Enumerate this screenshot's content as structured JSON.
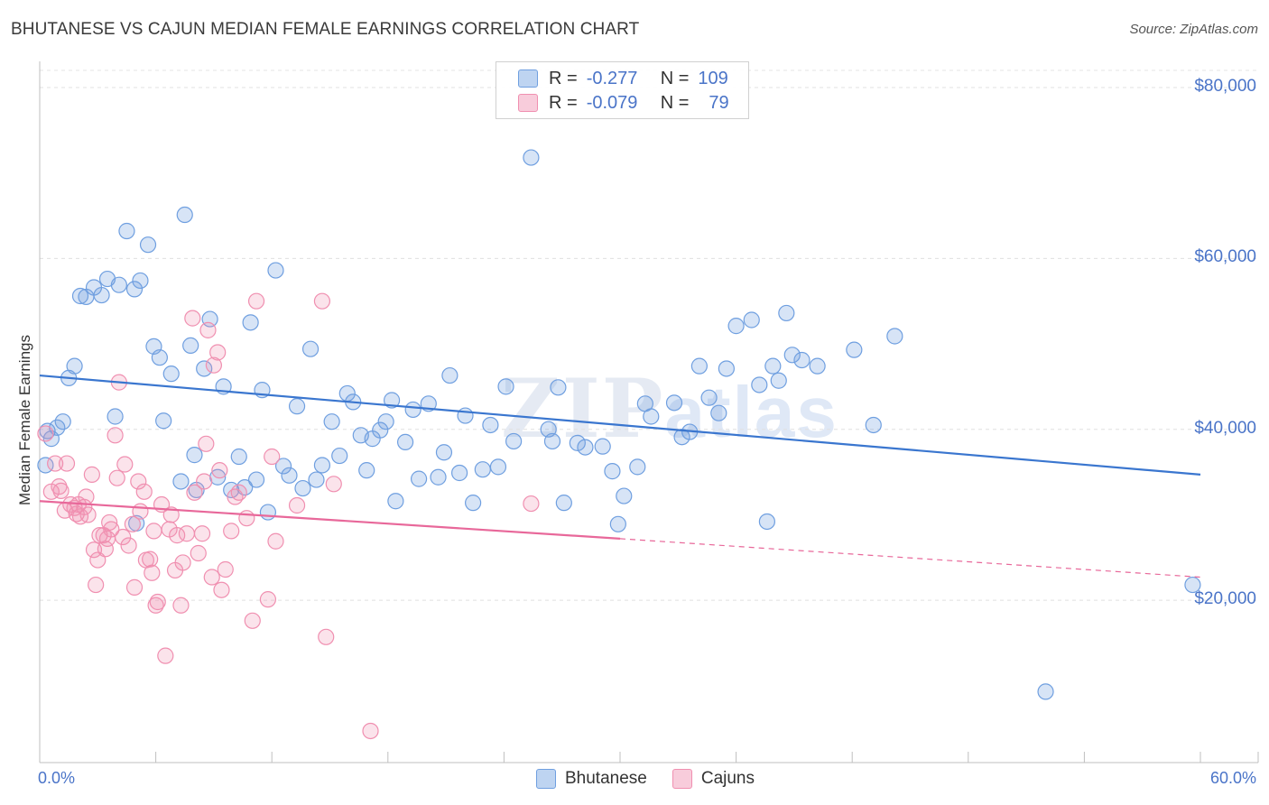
{
  "title": "BHUTANESE VS CAJUN MEDIAN FEMALE EARNINGS CORRELATION CHART",
  "source": "Source: ZipAtlas.com",
  "watermark": {
    "zip": "ZIP",
    "atlas": "atlas"
  },
  "colors": {
    "blue": "#6f9fe0",
    "blue_line": "#3a76cf",
    "pink": "#f08fb0",
    "pink_line": "#e8689a",
    "axis_text": "#4a74c8"
  },
  "legend": {
    "rows": [
      {
        "r_label": "R =",
        "r_value": "-0.277",
        "n_label": "N =",
        "n_value": "109",
        "color": "#6f9fe0"
      },
      {
        "r_label": "R =",
        "r_value": "-0.079",
        "n_label": "N =",
        "n_value": "79",
        "color": "#f08fb0"
      }
    ]
  },
  "bottom_legend": [
    {
      "label": "Bhutanese",
      "color": "#6f9fe0"
    },
    {
      "label": "Cajuns",
      "color": "#f08fb0"
    }
  ],
  "chart_data": {
    "type": "scatter",
    "title": "BHUTANESE VS CAJUN MEDIAN FEMALE EARNINGS CORRELATION CHART",
    "xlabel": "",
    "ylabel": "Median Female Earnings",
    "x_tick_labels": [
      "0.0%",
      "60.0%"
    ],
    "y_tick_labels": [
      "$20,000",
      "$40,000",
      "$60,000",
      "$80,000"
    ],
    "y_ticks": [
      20000,
      40000,
      60000,
      80000
    ],
    "xlim": [
      0,
      60
    ],
    "ylim": [
      1000,
      82000
    ],
    "grid": true,
    "legend_position": "top-center",
    "series": [
      {
        "name": "Bhutanese",
        "color": "#6f9fe0",
        "trend": {
          "x": [
            0,
            60
          ],
          "y": [
            46300,
            34700
          ],
          "style": "solid"
        },
        "points": [
          [
            0.4,
            39800
          ],
          [
            1.2,
            40900
          ],
          [
            1.5,
            46000
          ],
          [
            1.8,
            47400
          ],
          [
            2.1,
            55600
          ],
          [
            2.4,
            55500
          ],
          [
            2.8,
            56600
          ],
          [
            3.2,
            55700
          ],
          [
            3.5,
            57600
          ],
          [
            3.9,
            41500
          ],
          [
            4.1,
            56900
          ],
          [
            4.5,
            63200
          ],
          [
            4.9,
            56400
          ],
          [
            5.2,
            57400
          ],
          [
            5.6,
            61600
          ],
          [
            5.9,
            49700
          ],
          [
            6.2,
            48400
          ],
          [
            6.4,
            41000
          ],
          [
            6.8,
            46500
          ],
          [
            7.3,
            33900
          ],
          [
            7.5,
            65100
          ],
          [
            7.8,
            49800
          ],
          [
            8.1,
            32900
          ],
          [
            8.5,
            47100
          ],
          [
            8.8,
            52900
          ],
          [
            9.2,
            34400
          ],
          [
            9.5,
            45000
          ],
          [
            9.9,
            32900
          ],
          [
            10.3,
            36800
          ],
          [
            10.6,
            33200
          ],
          [
            10.9,
            52500
          ],
          [
            11.2,
            34100
          ],
          [
            11.5,
            44600
          ],
          [
            11.8,
            30300
          ],
          [
            12.2,
            58600
          ],
          [
            12.6,
            35700
          ],
          [
            12.9,
            34600
          ],
          [
            13.3,
            42700
          ],
          [
            13.6,
            33100
          ],
          [
            14.0,
            49400
          ],
          [
            14.3,
            34100
          ],
          [
            14.6,
            35800
          ],
          [
            15.1,
            40900
          ],
          [
            15.5,
            36900
          ],
          [
            15.9,
            44200
          ],
          [
            16.2,
            43200
          ],
          [
            16.6,
            39300
          ],
          [
            16.9,
            35200
          ],
          [
            17.2,
            38900
          ],
          [
            17.6,
            39900
          ],
          [
            17.9,
            40900
          ],
          [
            18.2,
            43400
          ],
          [
            18.4,
            31600
          ],
          [
            18.9,
            38500
          ],
          [
            19.3,
            42300
          ],
          [
            19.6,
            34200
          ],
          [
            20.1,
            43000
          ],
          [
            20.6,
            34400
          ],
          [
            20.9,
            37300
          ],
          [
            21.2,
            46300
          ],
          [
            21.7,
            34900
          ],
          [
            22.0,
            41600
          ],
          [
            22.4,
            31400
          ],
          [
            22.9,
            35300
          ],
          [
            23.3,
            40500
          ],
          [
            23.7,
            35600
          ],
          [
            24.1,
            45000
          ],
          [
            24.5,
            38600
          ],
          [
            25.4,
            71800
          ],
          [
            26.3,
            40000
          ],
          [
            26.5,
            38600
          ],
          [
            26.8,
            44900
          ],
          [
            27.1,
            31400
          ],
          [
            27.8,
            38400
          ],
          [
            28.2,
            37900
          ],
          [
            29.1,
            38000
          ],
          [
            29.6,
            35100
          ],
          [
            29.9,
            28900
          ],
          [
            30.2,
            32200
          ],
          [
            30.9,
            35600
          ],
          [
            31.3,
            43000
          ],
          [
            31.6,
            41500
          ],
          [
            32.8,
            43100
          ],
          [
            33.2,
            39100
          ],
          [
            33.6,
            39700
          ],
          [
            34.1,
            47400
          ],
          [
            34.6,
            43700
          ],
          [
            35.1,
            41900
          ],
          [
            35.5,
            47100
          ],
          [
            36.0,
            52100
          ],
          [
            36.8,
            52800
          ],
          [
            37.2,
            45200
          ],
          [
            37.6,
            29200
          ],
          [
            37.9,
            47400
          ],
          [
            38.2,
            45700
          ],
          [
            38.6,
            53600
          ],
          [
            38.9,
            48700
          ],
          [
            39.4,
            48100
          ],
          [
            40.2,
            47400
          ],
          [
            42.1,
            49300
          ],
          [
            43.1,
            40500
          ],
          [
            44.2,
            50900
          ],
          [
            52.0,
            9300
          ],
          [
            59.6,
            21800
          ],
          [
            0.3,
            35800
          ],
          [
            0.9,
            40200
          ],
          [
            5.0,
            29000
          ],
          [
            8.0,
            37000
          ],
          [
            0.6,
            38900
          ]
        ]
      },
      {
        "name": "Cajuns",
        "color": "#f08fb0",
        "trend": {
          "x": [
            0,
            30
          ],
          "y": [
            31600,
            27200
          ],
          "style": "solid"
        },
        "trend_extension": {
          "x": [
            30,
            60
          ],
          "y": [
            27200,
            22700
          ],
          "style": "dashed"
        },
        "points": [
          [
            0.3,
            39500
          ],
          [
            0.6,
            32700
          ],
          [
            0.8,
            36000
          ],
          [
            1.0,
            33300
          ],
          [
            1.1,
            32800
          ],
          [
            1.3,
            30500
          ],
          [
            1.4,
            36000
          ],
          [
            1.6,
            31200
          ],
          [
            1.8,
            30800
          ],
          [
            1.9,
            30100
          ],
          [
            2.0,
            31200
          ],
          [
            2.1,
            29800
          ],
          [
            2.3,
            30900
          ],
          [
            2.4,
            32100
          ],
          [
            2.5,
            30000
          ],
          [
            2.7,
            34700
          ],
          [
            2.8,
            25900
          ],
          [
            2.9,
            21800
          ],
          [
            3.0,
            24700
          ],
          [
            3.1,
            27600
          ],
          [
            3.3,
            27600
          ],
          [
            3.5,
            27200
          ],
          [
            3.6,
            29100
          ],
          [
            3.7,
            28300
          ],
          [
            3.9,
            39300
          ],
          [
            4.0,
            34300
          ],
          [
            4.1,
            45500
          ],
          [
            4.3,
            27400
          ],
          [
            4.4,
            35900
          ],
          [
            4.6,
            26400
          ],
          [
            4.8,
            28900
          ],
          [
            4.9,
            21500
          ],
          [
            5.1,
            33900
          ],
          [
            5.2,
            30400
          ],
          [
            5.4,
            32700
          ],
          [
            5.5,
            24700
          ],
          [
            5.7,
            24800
          ],
          [
            5.9,
            28100
          ],
          [
            6.0,
            19400
          ],
          [
            6.1,
            19800
          ],
          [
            6.3,
            31200
          ],
          [
            6.5,
            13500
          ],
          [
            6.7,
            28300
          ],
          [
            6.8,
            30000
          ],
          [
            7.1,
            27600
          ],
          [
            7.3,
            19400
          ],
          [
            7.4,
            24400
          ],
          [
            7.6,
            27800
          ],
          [
            7.9,
            53000
          ],
          [
            8.0,
            32600
          ],
          [
            8.2,
            25500
          ],
          [
            8.4,
            27800
          ],
          [
            8.5,
            33900
          ],
          [
            8.6,
            38300
          ],
          [
            8.7,
            51600
          ],
          [
            8.9,
            22700
          ],
          [
            9.0,
            47500
          ],
          [
            9.2,
            49000
          ],
          [
            9.4,
            21200
          ],
          [
            9.6,
            23600
          ],
          [
            9.9,
            28100
          ],
          [
            10.1,
            32100
          ],
          [
            10.3,
            32600
          ],
          [
            10.7,
            29600
          ],
          [
            11.0,
            17600
          ],
          [
            11.2,
            55000
          ],
          [
            11.8,
            20100
          ],
          [
            12.0,
            36800
          ],
          [
            12.2,
            26900
          ],
          [
            13.3,
            31100
          ],
          [
            14.6,
            55000
          ],
          [
            14.8,
            15700
          ],
          [
            15.2,
            33600
          ],
          [
            17.1,
            4700
          ],
          [
            25.4,
            31300
          ],
          [
            3.4,
            26000
          ],
          [
            5.8,
            23200
          ],
          [
            7.0,
            23500
          ],
          [
            9.3,
            35200
          ]
        ]
      }
    ]
  }
}
